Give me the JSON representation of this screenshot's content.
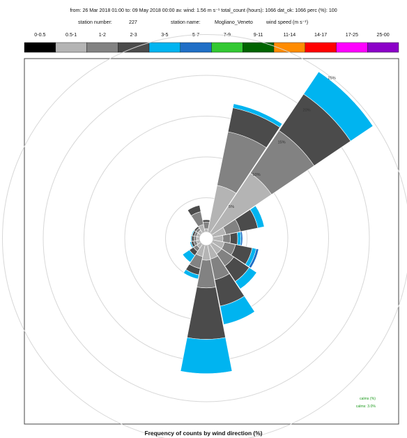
{
  "chart_data": {
    "type": "polar-stacked-bar",
    "header_text": "from: 26 Mar 2018 01:00   to: 09 May 2018  00:00   av. wind:  1.56 m s⁻¹   total_count (hours): 1066   dat_ok: 1066   perc (%): 100",
    "station_number_label": "station number:",
    "station_number": "227",
    "station_name_label": "station name:",
    "station_name": "Mogliano_Veneto",
    "wind_speed_label": "wind speed (m s⁻¹)",
    "title": "Frequency of counts by wind direction (%)",
    "speed_classes": [
      {
        "label": "0-0.5",
        "color": "#000000"
      },
      {
        "label": "0.5-1",
        "color": "#b4b4b4"
      },
      {
        "label": "1-2",
        "color": "#828282"
      },
      {
        "label": "2-3",
        "color": "#4b4b4b"
      },
      {
        "label": "3-5",
        "color": "#00b4f0"
      },
      {
        "label": "5-7",
        "color": "#1f6fc6"
      },
      {
        "label": "7-9",
        "color": "#32c832"
      },
      {
        "label": "9-11",
        "color": "#006400"
      },
      {
        "label": "11-14",
        "color": "#ff8c00"
      },
      {
        "label": "14-17",
        "color": "#ff0000"
      },
      {
        "label": "17-25",
        "color": "#ff00ff"
      },
      {
        "label": "25-00",
        "color": "#8c00c8"
      }
    ],
    "ring_values": [
      5,
      10,
      15,
      20,
      25
    ],
    "ring_labels": [
      "5%",
      "10%",
      "15%",
      "20%",
      "25%"
    ],
    "direction_start_deg": 0,
    "direction_step_deg": 22.5,
    "sectors": [
      [
        0,
        0.35,
        0.8,
        0.3,
        0,
        0,
        0,
        0,
        0,
        0,
        0,
        0
      ],
      [
        0,
        5.8,
        6.7,
        3.0,
        0.5,
        0,
        0,
        0,
        0,
        0,
        0,
        0
      ],
      [
        0,
        8.8,
        6.3,
        5.4,
        3.3,
        0,
        0,
        0,
        0,
        0,
        0,
        0
      ],
      [
        0,
        1.6,
        1.8,
        2.2,
        0.8,
        0,
        0,
        0,
        0,
        0,
        0,
        0
      ],
      [
        0,
        1.2,
        0.9,
        0.9,
        0.4,
        0.2,
        0,
        0,
        0,
        0,
        0,
        0
      ],
      [
        0,
        1.4,
        1.4,
        2.1,
        0.5,
        0.3,
        0,
        0,
        0,
        0,
        0,
        0
      ],
      [
        0,
        1.4,
        1.8,
        2.3,
        1.1,
        0,
        0,
        0,
        0,
        0,
        0,
        0
      ],
      [
        0,
        1.7,
        2.6,
        3.3,
        2.3,
        0,
        0,
        0,
        0,
        0,
        0,
        0
      ],
      [
        0,
        1.8,
        3.4,
        6.3,
        4.2,
        0,
        0,
        0,
        0,
        0,
        0,
        0
      ],
      [
        0,
        1.4,
        1.5,
        0.8,
        0.5,
        0,
        0,
        0,
        0,
        0,
        0,
        0
      ],
      [
        0,
        0.55,
        0.5,
        0.6,
        1.0,
        0,
        0,
        0,
        0,
        0,
        0,
        0
      ],
      [
        0,
        0.4,
        0.35,
        0.3,
        0.15,
        0,
        0,
        0,
        0,
        0,
        0,
        0
      ],
      [
        0,
        0.35,
        0.3,
        0.3,
        0.1,
        0,
        0,
        0,
        0,
        0,
        0,
        0
      ],
      [
        0,
        0.35,
        0.3,
        0.25,
        0.1,
        0,
        0,
        0,
        0,
        0,
        0,
        0
      ],
      [
        0,
        0.4,
        0.3,
        0.25,
        0.05,
        0,
        0,
        0,
        0,
        0,
        0,
        0
      ],
      [
        0,
        0.9,
        1.6,
        0.8,
        0,
        0,
        0,
        0,
        0,
        0,
        0,
        0
      ]
    ],
    "calm_label": "calms (%)",
    "calm_value": "3.0",
    "calm_text": "calms: 3.0%",
    "bottom_text": "wind speed (m s⁻¹)"
  },
  "colors": {
    "background": "#ffffff",
    "frame": "#444444",
    "rings": "#d7d7d7"
  }
}
